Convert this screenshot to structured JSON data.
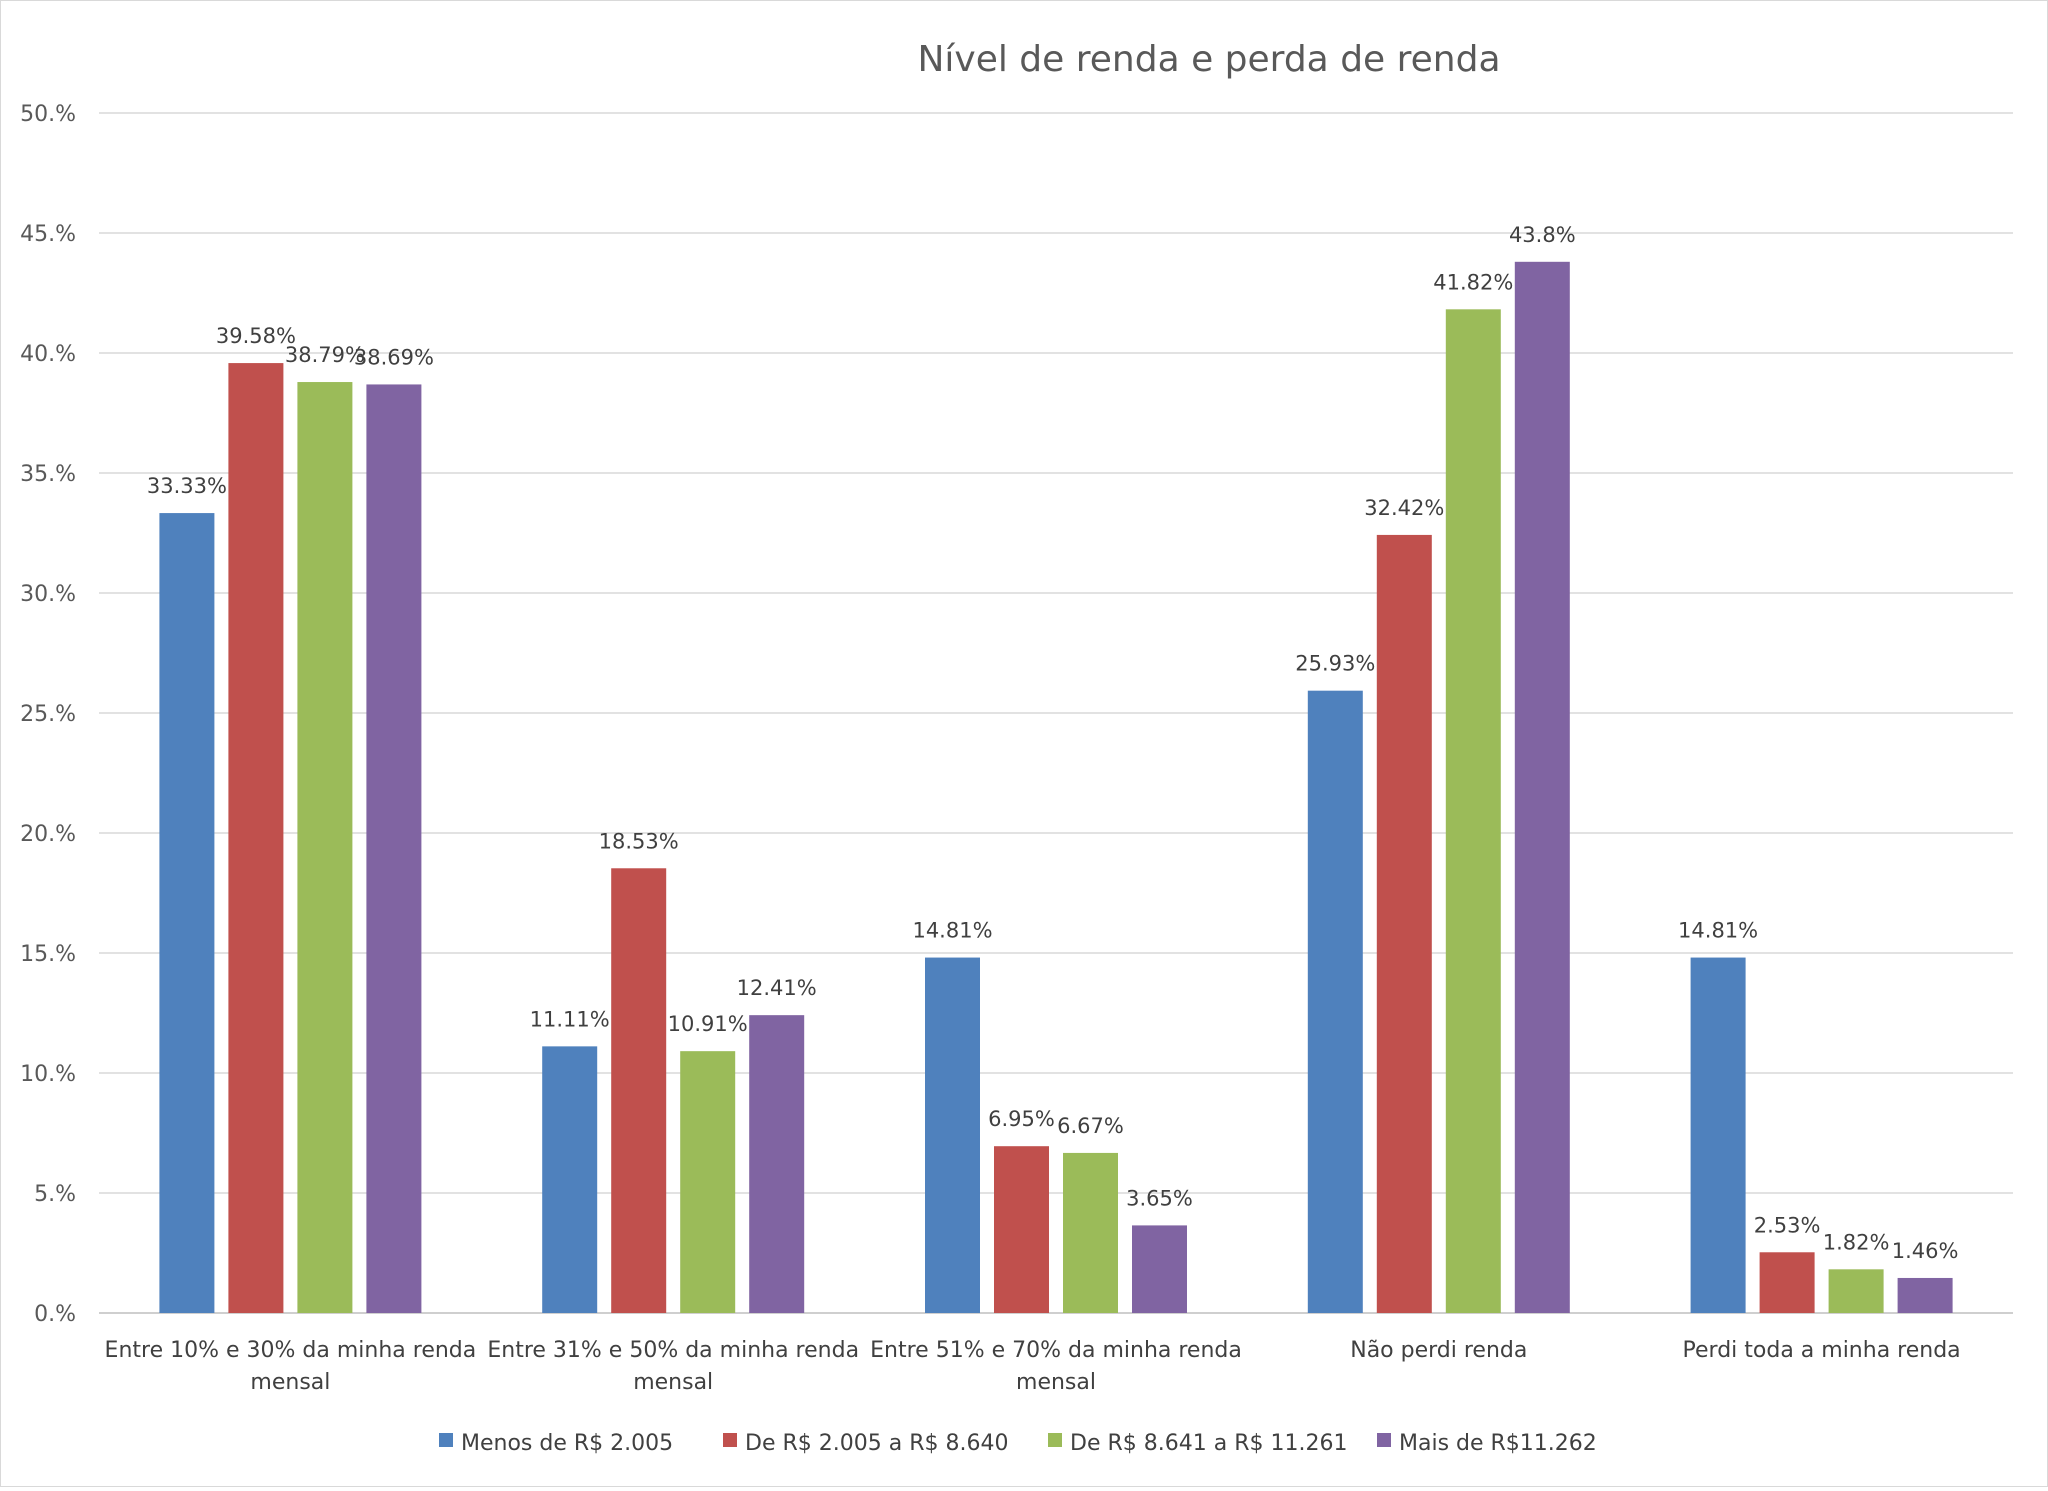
{
  "chart_data": {
    "type": "bar",
    "title": "Nível de renda e perda de renda",
    "xlabel": "",
    "ylabel": "",
    "ylim": [
      0,
      50
    ],
    "yticks": [
      "0.%",
      "5.%",
      "10.%",
      "15.%",
      "20.%",
      "25.%",
      "30.%",
      "35.%",
      "40.%",
      "45.%",
      "50.%"
    ],
    "ytick_values": [
      0,
      5,
      10,
      15,
      20,
      25,
      30,
      35,
      40,
      45,
      50
    ],
    "grid": true,
    "legend_position": "bottom",
    "categories": [
      [
        "Entre 10% e 30% da minha renda",
        "mensal"
      ],
      [
        "Entre 31% e 50% da minha renda",
        "mensal"
      ],
      [
        "Entre 51% e 70% da minha renda",
        "mensal"
      ],
      [
        "Não perdi renda"
      ],
      [
        "Perdi toda a minha renda"
      ]
    ],
    "series": [
      {
        "name": "Menos de R$ 2.005",
        "color": "#4F81BD",
        "values": [
          33.33,
          11.11,
          14.81,
          25.93,
          14.81
        ],
        "labels": [
          "33.33%",
          "11.11%",
          "14.81%",
          "25.93%",
          "14.81%"
        ]
      },
      {
        "name": "De R$ 2.005 a R$ 8.640",
        "color": "#C0504D",
        "values": [
          39.58,
          18.53,
          6.95,
          32.42,
          2.53
        ],
        "labels": [
          "39.58%",
          "18.53%",
          "6.95%",
          "32.42%",
          "2.53%"
        ]
      },
      {
        "name": "De R$ 8.641 a R$ 11.261",
        "color": "#9BBB59",
        "values": [
          38.79,
          10.91,
          6.67,
          41.82,
          1.82
        ],
        "labels": [
          "38.79%",
          "10.91%",
          "6.67%",
          "41.82%",
          "1.82%"
        ]
      },
      {
        "name": "Mais de R$11.262",
        "color": "#8064A2",
        "values": [
          38.69,
          12.41,
          3.65,
          43.8,
          1.46
        ],
        "labels": [
          "38.69%",
          "12.41%",
          "3.65%",
          "43.8%",
          "1.46%"
        ]
      }
    ]
  },
  "colors": {
    "grid": "#d9d9d9",
    "axis": "#bfbfbf"
  }
}
